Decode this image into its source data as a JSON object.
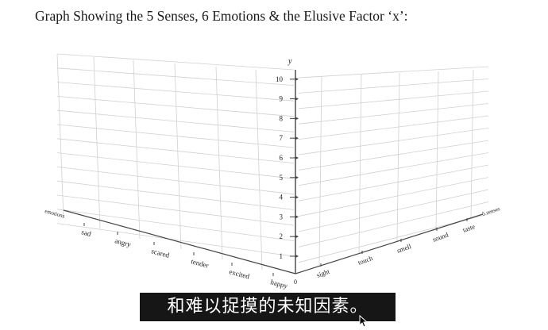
{
  "title": "Graph Showing the 5 Senses, 6 Emotions & the Elusive Factor ‘x’:",
  "y_axis": {
    "label": "y",
    "origin_label": "0",
    "ticks": [
      "1",
      "2",
      "3",
      "4",
      "5",
      "6",
      "7",
      "8",
      "9",
      "10"
    ]
  },
  "left_axis": {
    "label": "emotions",
    "ticks": [
      "sad",
      "angry",
      "scared",
      "tender",
      "excited",
      "happy"
    ]
  },
  "right_axis": {
    "label": "5 senses",
    "ticks": [
      "sight",
      "touch",
      "smell",
      "sound",
      "taste"
    ]
  },
  "subtitle": "和难以捉摸的未知因素。",
  "colors": {
    "grid": "#d0d0d0",
    "axis": "#444444",
    "subtitle_bg": "#161616",
    "subtitle_text": "#ffffff"
  },
  "icons": {
    "cursor": "mouse-pointer-icon"
  }
}
